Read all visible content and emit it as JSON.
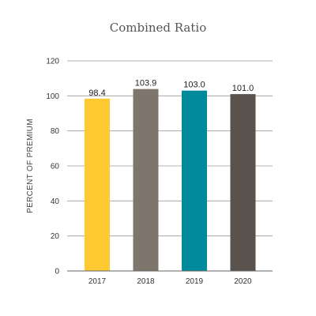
{
  "chart_data": {
    "type": "bar",
    "title": "Combined Ratio",
    "xlabel": "",
    "ylabel": "PERCENT OF PREMIUM",
    "categories": [
      "2017",
      "2018",
      "2019",
      "2020"
    ],
    "values": [
      98.4,
      103.9,
      103.0,
      101.0
    ],
    "value_labels": [
      "98.4",
      "103.9",
      "103.0",
      "101.0"
    ],
    "bar_colors": [
      "#ffca31",
      "#7e766d",
      "#008a9c",
      "#5a524c"
    ],
    "ylim": [
      0,
      120
    ],
    "yticks": [
      0,
      20,
      40,
      60,
      80,
      100,
      120
    ],
    "grid": true
  }
}
